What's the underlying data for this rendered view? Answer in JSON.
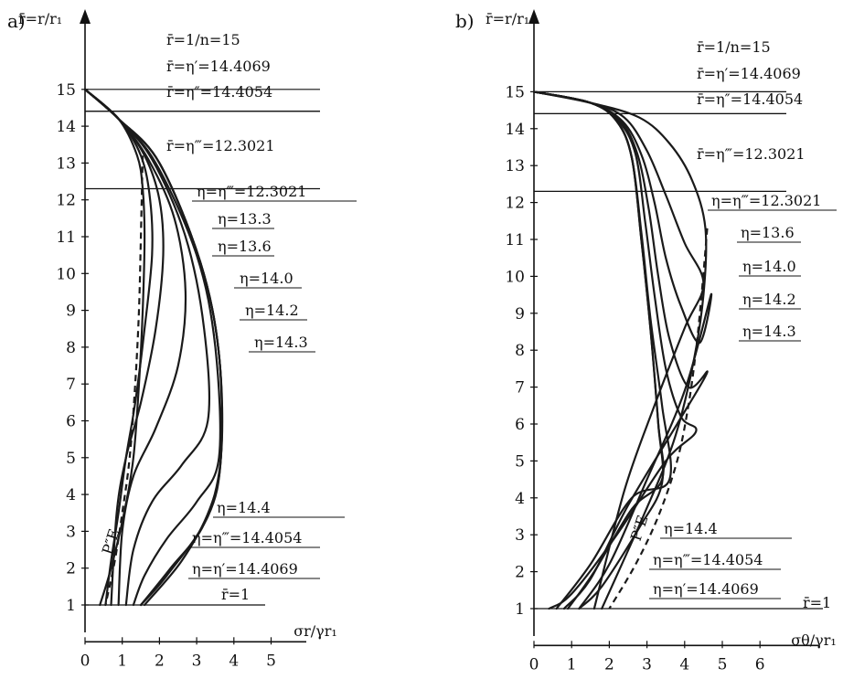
{
  "chart_data": [
    {
      "type": "line",
      "panel_label": "a)",
      "ylabel": "r̄=r/r₁",
      "xlabel": "σr/γr₁",
      "xlim": [
        0,
        5.5
      ],
      "ylim": [
        0,
        15.5
      ],
      "x_ticks": [
        "0",
        "1",
        "2",
        "3",
        "4",
        "5"
      ],
      "y_ticks": [
        "1",
        "2",
        "3",
        "4",
        "5",
        "6",
        "7",
        "8",
        "9",
        "10",
        "11",
        "12",
        "13",
        "14",
        "15"
      ],
      "reference_lines": [
        {
          "y": 15,
          "label": "r̄=1/n=15"
        },
        {
          "y": 14.4069,
          "label": "r̄=η′=14.4069"
        },
        {
          "y": 14.4054,
          "label": "r̄=η″=14.4054"
        },
        {
          "y": 12.3021,
          "label": "r̄=η‴=12.3021"
        },
        {
          "y": 1,
          "label": "r̄=1"
        }
      ],
      "curve_labels": [
        "η=η‴=12.3021",
        "η=13.3",
        "η=13.6",
        "η=14.0",
        "η=14.2",
        "η=14.3"
      ],
      "bottom_labels": [
        "η=14.4",
        "η=η‴=14.4054",
        "η=η′=14.4069"
      ],
      "dashed_label": "P″E",
      "series": [
        {
          "name": "η=η‴=12.3021",
          "x": [
            0.0,
            0.9,
            1.4,
            1.55,
            1.6,
            1.55,
            1.45,
            1.3,
            1.05,
            0.7,
            0.4
          ],
          "y": [
            15,
            14.2,
            13.2,
            12.3,
            11.0,
            9.0,
            7.0,
            5.0,
            3.5,
            2.0,
            1.0
          ]
        },
        {
          "name": "η=13.3",
          "x": [
            0.0,
            0.9,
            1.5,
            1.75,
            1.8,
            1.6,
            1.35,
            1.1,
            0.9,
            0.7,
            0.55
          ],
          "y": [
            15,
            14.2,
            13.2,
            12.0,
            10.5,
            8.5,
            6.5,
            5.0,
            3.5,
            2.2,
            1.0
          ]
        },
        {
          "name": "η=13.6",
          "x": [
            0.0,
            0.9,
            1.6,
            2.0,
            2.1,
            1.9,
            1.5,
            1.1,
            0.85,
            0.7
          ],
          "y": [
            15,
            14.2,
            13.2,
            12.0,
            10.5,
            8.5,
            6.5,
            5.0,
            3.5,
            1.0
          ]
        },
        {
          "name": "η=14.0",
          "x": [
            0.0,
            0.9,
            1.7,
            2.4,
            2.7,
            2.5,
            1.9,
            1.3,
            1.0,
            0.9
          ],
          "y": [
            15,
            14.2,
            13.1,
            11.5,
            9.5,
            7.5,
            5.8,
            4.5,
            3.0,
            1.0
          ]
        },
        {
          "name": "η=14.2",
          "x": [
            0.0,
            0.9,
            1.8,
            2.7,
            3.2,
            3.3,
            2.6,
            1.8,
            1.3,
            1.1
          ],
          "y": [
            15,
            14.2,
            13.1,
            11.0,
            8.5,
            6.0,
            4.8,
            3.8,
            2.5,
            1.0
          ]
        },
        {
          "name": "η=14.3",
          "x": [
            0.0,
            0.9,
            1.9,
            3.0,
            3.5,
            3.6,
            3.0,
            2.2,
            1.6,
            1.3
          ],
          "y": [
            15,
            14.2,
            13.0,
            10.5,
            8.0,
            5.0,
            3.8,
            2.8,
            1.8,
            1.0
          ]
        },
        {
          "name": "η=14.4",
          "x": [
            0.0,
            0.9,
            2.0,
            3.1,
            3.6,
            3.65,
            3.2,
            2.3,
            1.5
          ],
          "y": [
            15,
            14.2,
            13.0,
            10.3,
            7.8,
            5.0,
            3.2,
            2.0,
            1.0
          ]
        },
        {
          "name": "η=η″=14.4054",
          "x": [
            0.0,
            0.9,
            2.0,
            3.1,
            3.6,
            3.65,
            3.3,
            2.2,
            1.5
          ],
          "y": [
            15,
            14.2,
            13.0,
            10.3,
            7.8,
            5.0,
            3.4,
            1.8,
            1.0
          ]
        },
        {
          "name": "η=η′=14.4069",
          "x": [
            0.0,
            0.9,
            2.0,
            3.1,
            3.6,
            3.65,
            3.35,
            2.6,
            1.6
          ],
          "y": [
            15,
            14.2,
            13.0,
            10.3,
            7.8,
            5.0,
            3.6,
            2.2,
            1.0
          ]
        }
      ],
      "dashed_series": {
        "name": "P″E",
        "x": [
          1.55,
          1.5,
          1.45,
          1.35,
          1.2,
          1.0,
          0.8,
          0.55
        ],
        "y": [
          13.2,
          11.0,
          9.0,
          7.0,
          5.0,
          3.5,
          2.2,
          1.0
        ]
      }
    },
    {
      "type": "line",
      "panel_label": "b)",
      "ylabel": "r̄=r/r₁",
      "xlabel": "σθ/γr₁",
      "xlim": [
        0,
        7.4
      ],
      "ylim": [
        0,
        15.5
      ],
      "x_ticks": [
        "0",
        "1",
        "2",
        "3",
        "4",
        "5",
        "6"
      ],
      "y_ticks": [
        "1",
        "2",
        "3",
        "4",
        "5",
        "6",
        "7",
        "8",
        "9",
        "10",
        "11",
        "12",
        "13",
        "14",
        "15"
      ],
      "reference_lines": [
        {
          "y": 15,
          "label": "r̄=1/n=15"
        },
        {
          "y": 14.4069,
          "label": "r̄=η′=14.4069"
        },
        {
          "y": 14.4054,
          "label": "r̄=η″=14.4054"
        },
        {
          "y": 12.3021,
          "label": "r̄=η‴=12.3021"
        },
        {
          "y": 1,
          "label": "r̄=1"
        }
      ],
      "curve_labels": [
        "η=η‴=12.3021",
        "η=13.6",
        "η=14.0",
        "η=14.2",
        "η=14.3"
      ],
      "bottom_labels": [
        "η=14.4",
        "η=η‴=14.4054",
        "η=η′=14.4069"
      ],
      "dashed_label": "P″E",
      "series": [
        {
          "name": "η=η‴=12.3021",
          "x": [
            0.0,
            1.5,
            2.8,
            3.6,
            4.2,
            4.55,
            4.5,
            4.2,
            3.7,
            2.9,
            1.8
          ],
          "y": [
            15,
            14.7,
            14.3,
            13.6,
            12.6,
            11.3,
            9.5,
            7.5,
            5.5,
            3.5,
            1.0
          ]
        },
        {
          "name": "η=13.6",
          "x": [
            0.0,
            1.5,
            2.4,
            3.0,
            3.5,
            4.0,
            4.5,
            4.0,
            3.2,
            2.4,
            1.6
          ],
          "y": [
            15,
            14.7,
            14.3,
            13.4,
            12.2,
            10.9,
            9.8,
            8.6,
            6.5,
            4.2,
            1.0
          ]
        },
        {
          "name": "η=14.0",
          "x": [
            0.0,
            1.5,
            2.35,
            2.85,
            3.2,
            3.5,
            3.9,
            4.4,
            4.7,
            4.0,
            3.0,
            2.0,
            1.2
          ],
          "y": [
            15,
            14.7,
            14.2,
            13.3,
            12.0,
            10.5,
            9.2,
            8.2,
            9.5,
            6.9,
            4.5,
            2.2,
            1.0
          ]
        },
        {
          "name": "η=14.2",
          "x": [
            0.0,
            1.5,
            2.3,
            2.75,
            3.05,
            3.3,
            3.6,
            4.1,
            4.6,
            3.8,
            2.5,
            1.5,
            0.8
          ],
          "y": [
            15,
            14.7,
            14.2,
            13.3,
            11.8,
            10.0,
            8.3,
            7.0,
            7.4,
            6.0,
            3.8,
            1.8,
            1.0
          ]
        },
        {
          "name": "η=14.3",
          "x": [
            0.0,
            1.5,
            2.25,
            2.7,
            2.95,
            3.2,
            3.5,
            3.9,
            4.3,
            3.5,
            2.2,
            1.0,
            0.4
          ],
          "y": [
            15,
            14.7,
            14.2,
            13.3,
            11.5,
            9.5,
            7.5,
            6.2,
            5.8,
            5.0,
            3.0,
            1.4,
            1.0
          ]
        },
        {
          "name": "η=14.4",
          "x": [
            0.0,
            1.5,
            2.2,
            2.6,
            2.85,
            3.1,
            3.4,
            3.6,
            2.6,
            1.5,
            0.6
          ],
          "y": [
            15,
            14.7,
            14.2,
            13.2,
            11.2,
            8.8,
            6.5,
            4.5,
            4.0,
            2.2,
            1.0
          ]
        },
        {
          "name": "η=η″=14.4054",
          "x": [
            0.0,
            1.5,
            2.2,
            2.6,
            2.85,
            3.1,
            3.3,
            3.4,
            2.6,
            1.6,
            0.9
          ],
          "y": [
            15,
            14.7,
            14.2,
            13.2,
            11.0,
            8.5,
            6.0,
            4.5,
            3.7,
            2.0,
            1.0
          ]
        },
        {
          "name": "η=η′=14.4069",
          "x": [
            0.0,
            1.5,
            2.2,
            2.6,
            2.85,
            3.1,
            3.3,
            3.4,
            2.8,
            1.8,
            1.2
          ],
          "y": [
            15,
            14.7,
            14.2,
            13.2,
            11.0,
            8.5,
            6.0,
            4.4,
            3.2,
            1.6,
            1.0
          ]
        }
      ],
      "dashed_series": {
        "name": "P″E",
        "x": [
          4.6,
          4.45,
          4.3,
          4.1,
          3.8,
          3.3,
          2.7,
          2.0
        ],
        "y": [
          11.3,
          9.5,
          8.0,
          6.5,
          5.0,
          3.5,
          2.2,
          1.0
        ]
      }
    }
  ]
}
